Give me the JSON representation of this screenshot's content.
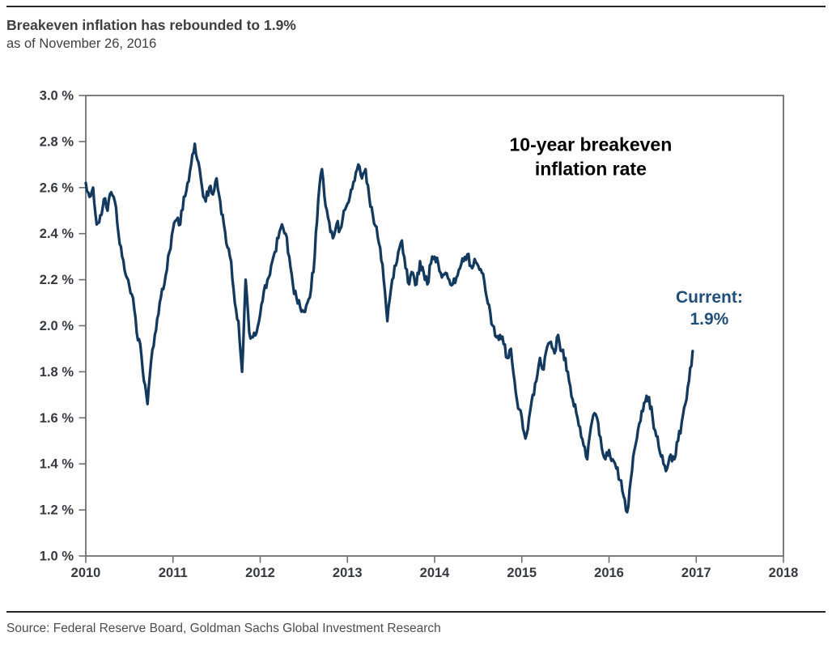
{
  "header": {
    "title": "Breakeven inflation has rebounded to 1.9%",
    "subtitle": "as of November 26, 2016"
  },
  "footer": {
    "source": "Source: Federal Reserve Board, Goldman Sachs Global Investment Research"
  },
  "colors": {
    "line": "#14395e",
    "tick_label": "#36393f",
    "axis": "#6f6f6f",
    "annotation_black": "#000000",
    "annotation_navy": "#1f4e79",
    "title_gray": "#3f3f3f",
    "source_gray": "#4d4d4d",
    "rule_dark": "#262626"
  },
  "chart_data": {
    "type": "line",
    "title": "",
    "xlabel": "",
    "ylabel": "",
    "grid": false,
    "legend": "none",
    "x_axis": {
      "min": 2010,
      "max": 2018,
      "tick_step": 1,
      "tick_labels": [
        "2010",
        "2011",
        "2012",
        "2013",
        "2014",
        "2015",
        "2016",
        "2017",
        "2018"
      ]
    },
    "y_axis": {
      "min": 1.0,
      "max": 3.0,
      "tick_step": 0.2,
      "tick_labels": [
        "3.0 %",
        "2.8 %",
        "2.6 %",
        "2.4 %",
        "2.2 %",
        "2.0 %",
        "1.8 %",
        "1.6 %",
        "1.4 %",
        "1.2 %",
        "1.0 %"
      ]
    },
    "series_name": "10-year breakeven inflation rate",
    "x_start": 2010.0,
    "x_step_years": 0.0416667,
    "x_end": 2016.958,
    "values": [
      2.62,
      2.56,
      2.6,
      2.44,
      2.48,
      2.55,
      2.5,
      2.58,
      2.54,
      2.4,
      2.3,
      2.22,
      2.17,
      2.12,
      1.97,
      1.92,
      1.76,
      1.66,
      1.85,
      1.96,
      2.05,
      2.16,
      2.22,
      2.32,
      2.42,
      2.46,
      2.44,
      2.56,
      2.62,
      2.7,
      2.79,
      2.71,
      2.6,
      2.54,
      2.6,
      2.57,
      2.64,
      2.54,
      2.44,
      2.34,
      2.28,
      2.1,
      2.02,
      1.8,
      2.2,
      1.97,
      1.95,
      1.97,
      2.05,
      2.15,
      2.2,
      2.26,
      2.32,
      2.38,
      2.44,
      2.4,
      2.3,
      2.18,
      2.12,
      2.08,
      2.06,
      2.1,
      2.16,
      2.3,
      2.55,
      2.68,
      2.52,
      2.45,
      2.38,
      2.44,
      2.42,
      2.5,
      2.53,
      2.59,
      2.63,
      2.7,
      2.64,
      2.68,
      2.56,
      2.48,
      2.43,
      2.34,
      2.2,
      2.02,
      2.16,
      2.26,
      2.32,
      2.37,
      2.25,
      2.18,
      2.23,
      2.18,
      2.28,
      2.23,
      2.18,
      2.27,
      2.3,
      2.27,
      2.21,
      2.23,
      2.2,
      2.18,
      2.21,
      2.25,
      2.28,
      2.31,
      2.26,
      2.29,
      2.26,
      2.23,
      2.15,
      2.09,
      2.0,
      1.95,
      1.96,
      1.92,
      1.86,
      1.9,
      1.76,
      1.64,
      1.6,
      1.51,
      1.6,
      1.7,
      1.76,
      1.86,
      1.81,
      1.91,
      1.93,
      1.88,
      1.96,
      1.89,
      1.86,
      1.76,
      1.68,
      1.62,
      1.56,
      1.48,
      1.42,
      1.56,
      1.62,
      1.58,
      1.47,
      1.42,
      1.46,
      1.42,
      1.38,
      1.33,
      1.26,
      1.19,
      1.33,
      1.46,
      1.55,
      1.63,
      1.67,
      1.69,
      1.6,
      1.52,
      1.45,
      1.4,
      1.38,
      1.44,
      1.42,
      1.5,
      1.58,
      1.66,
      1.76,
      1.89
    ],
    "key_points": {
      "start_2010": 2.62,
      "low_aug_2010": 1.65,
      "peak_apr_2011": 2.79,
      "low_oct_2011": 1.78,
      "peak_sep_2012": 2.68,
      "peak_feb_2013": 2.7,
      "low_jun_2013": 2.01,
      "low_jan_2015": 1.5,
      "low_feb_2016": 1.18,
      "current_nov_26_2016": 1.9
    },
    "annotations": [
      {
        "id": "series-label",
        "lines": [
          "10-year breakeven",
          "inflation rate"
        ],
        "x": 2015.79,
        "y": 2.76,
        "color": "#000000",
        "font_px": 23,
        "line_h": 30,
        "weight": "bold"
      },
      {
        "id": "current-label",
        "lines": [
          "Current:",
          "1.9%"
        ],
        "x": 2017.15,
        "y": 2.1,
        "color": "#1f4e79",
        "font_px": 21,
        "line_h": 27,
        "weight": "bold"
      }
    ]
  }
}
